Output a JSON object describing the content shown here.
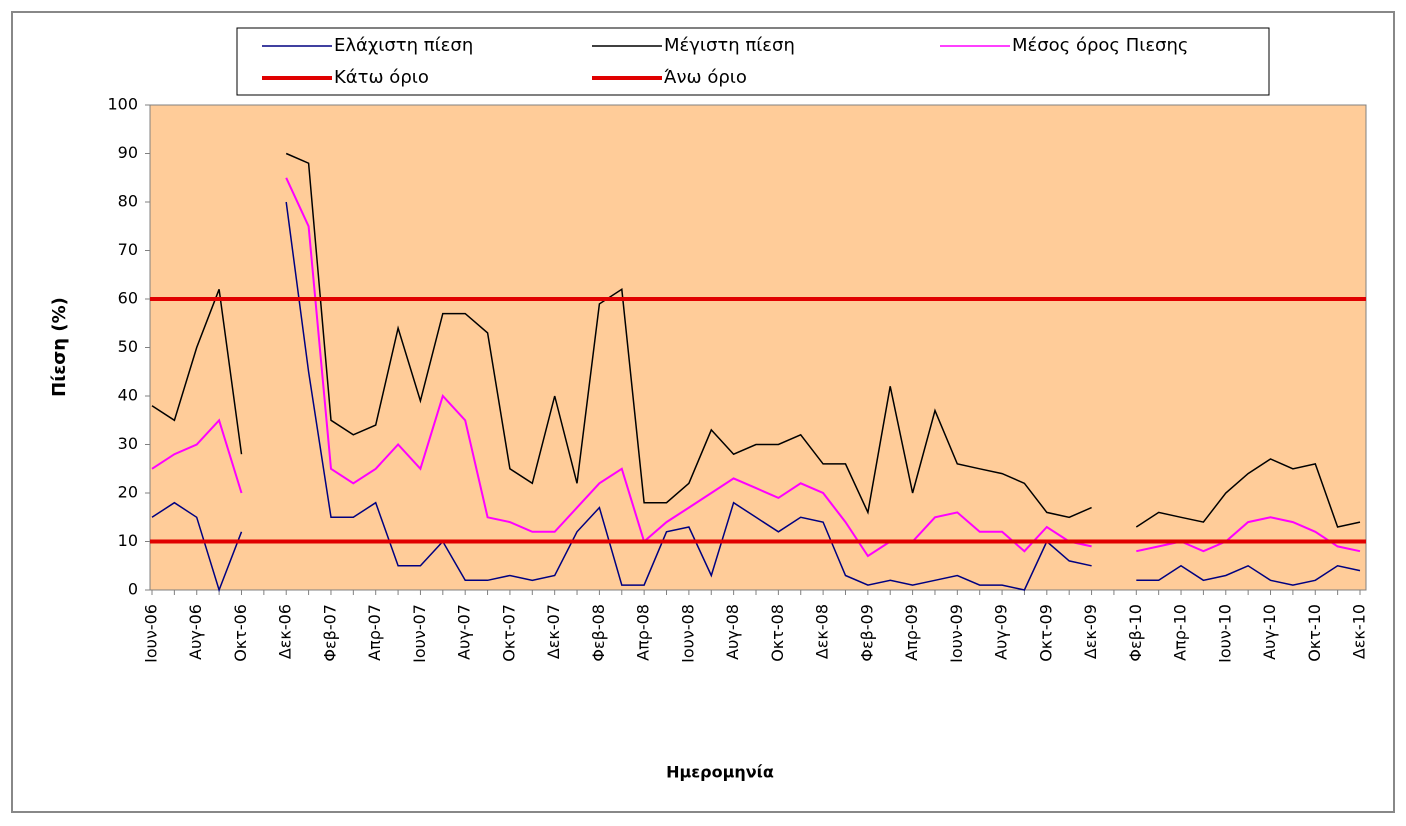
{
  "chart_data": {
    "type": "line",
    "x_label": "Ημερομηνία",
    "y_label": "Πίεση (%)",
    "categories": [
      "Ιουν-06",
      null,
      "Αυγ-06",
      null,
      "Οκτ-06",
      null,
      "Δεκ-06",
      null,
      "Φεβ-07",
      null,
      "Απρ-07",
      null,
      "Ιουν-07",
      null,
      "Αυγ-07",
      null,
      "Οκτ-07",
      null,
      "Δεκ-07",
      null,
      "Φεβ-08",
      null,
      "Απρ-08",
      null,
      "Ιουν-08",
      null,
      "Αυγ-08",
      null,
      "Οκτ-08",
      null,
      "Δεκ-08",
      null,
      "Φεβ-09",
      null,
      "Απρ-09",
      null,
      "Ιουν-09",
      null,
      "Αυγ-09",
      null,
      "Οκτ-09",
      null,
      "Δεκ-09",
      null,
      "Φεβ-10",
      null,
      "Απρ-10",
      null,
      "Ιουν-10",
      null,
      "Αυγ-10",
      null,
      "Οκτ-10",
      null,
      "Δεκ-10"
    ],
    "series": [
      {
        "name": "Ελάχιστη πίεση",
        "color": "#000080",
        "values": [
          15,
          18,
          15,
          0,
          12,
          null,
          80,
          45,
          15,
          15,
          18,
          5,
          5,
          10,
          2,
          2,
          3,
          2,
          3,
          12,
          17,
          1,
          1,
          12,
          13,
          3,
          18,
          15,
          12,
          15,
          14,
          3,
          1,
          2,
          1,
          2,
          3,
          1,
          1,
          0,
          10,
          6,
          5,
          null,
          2,
          2,
          5,
          2,
          3,
          5,
          2,
          1,
          2,
          5,
          4
        ]
      },
      {
        "name": "Μέγιστη πίεση",
        "color": "#000000",
        "values": [
          38,
          35,
          50,
          62,
          28,
          null,
          90,
          88,
          35,
          32,
          34,
          54,
          39,
          57,
          57,
          53,
          25,
          22,
          40,
          22,
          59,
          62,
          18,
          18,
          22,
          33,
          28,
          30,
          30,
          32,
          26,
          26,
          16,
          42,
          20,
          37,
          26,
          25,
          24,
          22,
          16,
          15,
          17,
          null,
          13,
          16,
          15,
          14,
          20,
          24,
          27,
          25,
          26,
          13,
          14
        ]
      },
      {
        "name": "Μέσος όρος Πιεσης",
        "color": "#FF00FF",
        "values": [
          25,
          28,
          30,
          35,
          20,
          null,
          85,
          75,
          25,
          22,
          25,
          30,
          25,
          40,
          35,
          15,
          14,
          12,
          12,
          17,
          22,
          25,
          10,
          14,
          17,
          20,
          23,
          21,
          19,
          22,
          20,
          14,
          7,
          10,
          10,
          15,
          16,
          12,
          12,
          8,
          13,
          10,
          9,
          null,
          8,
          9,
          10,
          8,
          10,
          14,
          15,
          14,
          12,
          9,
          8
        ]
      }
    ],
    "lines": [
      {
        "name": "Κάτω όριο",
        "value": 10,
        "color": "#E00000"
      },
      {
        "name": "Άνω όριο",
        "value": 60,
        "color": "#E00000"
      }
    ],
    "ylim": [
      0,
      100
    ],
    "yticks": [
      0,
      10,
      20,
      30,
      40,
      50,
      60,
      70,
      80,
      90,
      100
    ],
    "plot_background": "#FFCC99"
  }
}
